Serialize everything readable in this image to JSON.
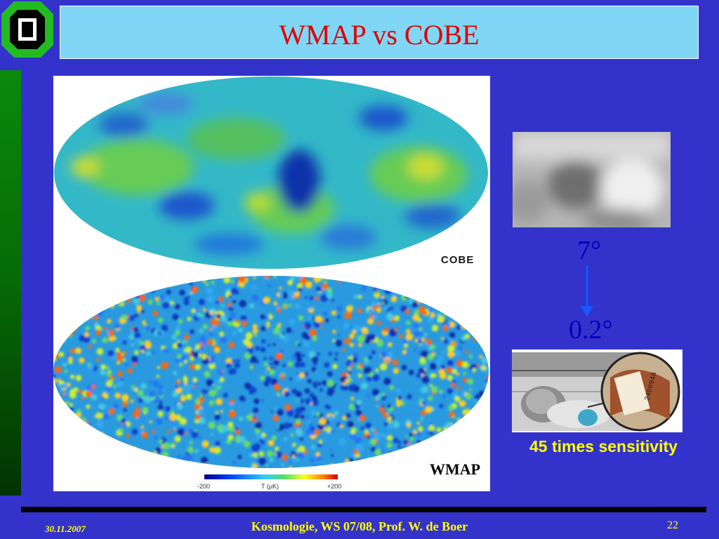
{
  "slide": {
    "title": "WMAP vs COBE",
    "cobe_label": "COBE",
    "wmap_label": "WMAP",
    "scale_min": "-200",
    "scale_unit": "T (μK)",
    "scale_max": "+200",
    "angle_top": "7°",
    "angle_bottom": "0.2°",
    "sensitivity": "45 times sensitivity"
  },
  "footer": {
    "date": "30.11.2007",
    "course": "Kosmologie,  WS 07/08,  Prof. W. de Boer",
    "page": "22"
  },
  "colors": {
    "background": "#3333cc",
    "title_box": "#7fd6f5",
    "title_text": "#e00000",
    "footer_text": "#ffff00",
    "angle_text": "#0000bb"
  }
}
